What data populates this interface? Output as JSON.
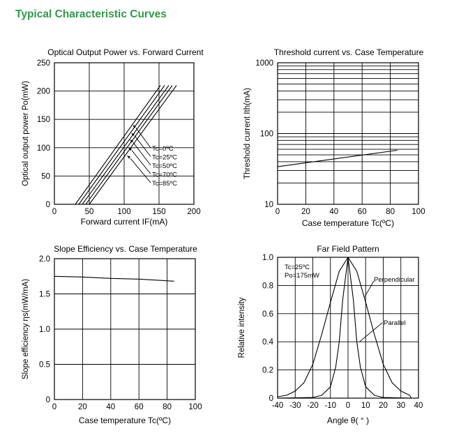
{
  "header": {
    "title": "Typical Characteristic Curves",
    "accent_color": "#2e9a4a"
  },
  "chart_data": [
    {
      "id": "optical",
      "type": "line",
      "title": "Optical Output Power vs. Forward Current",
      "xlabel": "Forward current IF(mA)",
      "ylabel": "Optical output power Po(mW)",
      "xlim": [
        0,
        200
      ],
      "ylim": [
        0,
        250
      ],
      "xticks": [
        "0",
        "50",
        "100",
        "150",
        "200"
      ],
      "yticks": [
        "0",
        "50",
        "100",
        "150",
        "200",
        "250"
      ],
      "xtick_values": [
        0,
        50,
        100,
        150,
        200
      ],
      "ytick_values": [
        0,
        50,
        100,
        150,
        200,
        250
      ],
      "grid": true,
      "series": [
        {
          "name": "Tc=0ºC",
          "x": [
            30,
            152
          ],
          "y": [
            0,
            210
          ]
        },
        {
          "name": "Tc=25ºC",
          "x": [
            35,
            158
          ],
          "y": [
            0,
            210
          ]
        },
        {
          "name": "Tc=50ºC",
          "x": [
            40,
            164
          ],
          "y": [
            0,
            210
          ]
        },
        {
          "name": "Tc=70ºC",
          "x": [
            45,
            169
          ],
          "y": [
            0,
            210
          ]
        },
        {
          "name": "Tc=85ºC",
          "x": [
            50,
            175
          ],
          "y": [
            0,
            210
          ]
        }
      ],
      "annotations": [
        {
          "text": "Tc=0ºC",
          "tip": [
            112,
            140
          ]
        },
        {
          "text": "Tc=25ºC",
          "tip": [
            110,
            126
          ]
        },
        {
          "text": "Tc=50ºC",
          "tip": [
            108,
            114
          ]
        },
        {
          "text": "Tc=70ºC",
          "tip": [
            106,
            100
          ]
        },
        {
          "text": "Tc=85ºC",
          "tip": [
            104,
            86
          ]
        }
      ]
    },
    {
      "id": "threshold",
      "type": "line",
      "title": "Threshold current vs. Case Temperature",
      "xlabel": "Case temperature Tc(ºC)",
      "ylabel": "Threshold current Ith(mA)",
      "xlim": [
        0,
        100
      ],
      "ylim": [
        10,
        1000
      ],
      "yscale": "log",
      "xticks": [
        "0",
        "20",
        "40",
        "60",
        "80",
        "100"
      ],
      "yticks": [
        "10",
        "100",
        "1000"
      ],
      "xtick_values": [
        0,
        20,
        40,
        60,
        80,
        100
      ],
      "ytick_values": [
        10,
        100,
        1000
      ],
      "grid": true,
      "series": [
        {
          "name": "Ith",
          "x": [
            0,
            85
          ],
          "y": [
            34,
            58
          ]
        }
      ]
    },
    {
      "id": "slope",
      "type": "line",
      "title": "Slope Efficiency vs. Case Temperature",
      "xlabel": "Case temperature Tc(ºC)",
      "ylabel": "Slope efficiency ηs(mW/mA)",
      "xlim": [
        0,
        100
      ],
      "ylim": [
        0,
        2.0
      ],
      "xticks": [
        "0",
        "20",
        "40",
        "60",
        "80",
        "100"
      ],
      "yticks": [
        "0",
        "0.5",
        "1.0",
        "1.5",
        "2.0"
      ],
      "xtick_values": [
        0,
        20,
        40,
        60,
        80,
        100
      ],
      "ytick_values": [
        0,
        0.5,
        1.0,
        1.5,
        2.0
      ],
      "grid": true,
      "series": [
        {
          "name": "ηs",
          "x": [
            0,
            20,
            40,
            60,
            85
          ],
          "y": [
            1.75,
            1.74,
            1.72,
            1.71,
            1.68
          ]
        }
      ]
    },
    {
      "id": "farfield",
      "type": "line",
      "title": "Far Field Pattern",
      "xlabel": "Angle θ( ° )",
      "ylabel": "Relative intensity",
      "xlim": [
        -40,
        40
      ],
      "ylim": [
        0,
        1.0
      ],
      "xticks": [
        "-40",
        "-30",
        "-20",
        "-10",
        "0",
        "10",
        "20",
        "30",
        "40"
      ],
      "yticks": [
        "0",
        "0.2",
        "0.4",
        "0.6",
        "0.8",
        "1.0"
      ],
      "xtick_values": [
        -40,
        -30,
        -20,
        -10,
        0,
        10,
        20,
        30,
        40
      ],
      "ytick_values": [
        0,
        0.2,
        0.4,
        0.6,
        0.8,
        1.0
      ],
      "grid": true,
      "conditions": [
        "Tc=25ºC",
        "Po=175mW"
      ],
      "series": [
        {
          "name": "Perpendicular",
          "x": [
            -40,
            -35,
            -30,
            -25,
            -20,
            -15,
            -10,
            -5,
            0,
            5,
            10,
            15,
            20,
            25,
            30,
            35,
            36
          ],
          "y": [
            0.01,
            0.02,
            0.05,
            0.11,
            0.24,
            0.45,
            0.68,
            0.9,
            1.0,
            0.9,
            0.68,
            0.45,
            0.24,
            0.11,
            0.05,
            0.02,
            0.0
          ]
        },
        {
          "name": "Parallel",
          "x": [
            -40,
            -20,
            -15,
            -10,
            -7,
            -5,
            -3,
            0,
            3,
            5,
            7,
            10,
            15,
            20,
            36
          ],
          "y": [
            0.0,
            0.005,
            0.02,
            0.08,
            0.22,
            0.4,
            0.7,
            1.0,
            0.7,
            0.4,
            0.22,
            0.08,
            0.02,
            0.005,
            0.0
          ]
        }
      ],
      "annotations": [
        {
          "text": "Perpendicular",
          "tip": [
            9.5,
            0.72
          ]
        },
        {
          "text": "Parallel",
          "tip": [
            6.5,
            0.4
          ]
        }
      ]
    }
  ]
}
